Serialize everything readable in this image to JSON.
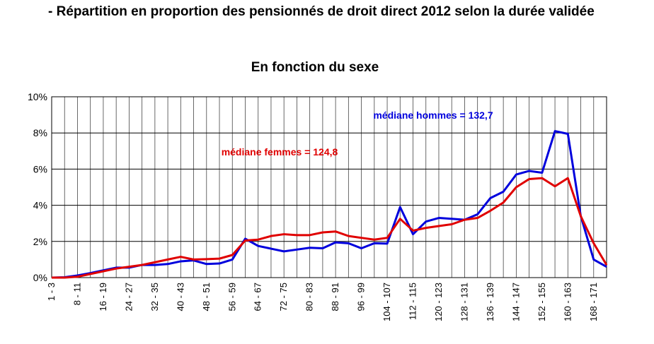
{
  "heading": "- Répartition en proportion des pensionnés de droit direct 2012 selon la durée validée",
  "chart_data": {
    "type": "line",
    "title": "En fonction du sexe",
    "categories": [
      "1 - 3",
      null,
      "8 - 11",
      null,
      "16 - 19",
      null,
      "24 - 27",
      null,
      "32 - 35",
      null,
      "40 - 43",
      null,
      "48 - 51",
      null,
      "56 - 59",
      null,
      "64 - 67",
      null,
      "72 - 75",
      null,
      "80 - 83",
      null,
      "88 - 91",
      null,
      "96 - 99",
      null,
      "104 - 107",
      null,
      "112 - 115",
      null,
      "120 - 123",
      null,
      "128 - 131",
      null,
      "136 - 139",
      null,
      "144 - 147",
      null,
      "152 - 155",
      null,
      "160 - 163",
      null,
      "168 - 171",
      null
    ],
    "series": [
      {
        "color": "#0000dd",
        "values": [
          0,
          0.02,
          0.12,
          0.25,
          0.4,
          0.55,
          0.55,
          0.7,
          0.7,
          0.75,
          0.9,
          0.95,
          0.75,
          0.78,
          1.0,
          2.15,
          1.75,
          1.6,
          1.45,
          1.55,
          1.65,
          1.62,
          1.95,
          1.9,
          1.62,
          1.9,
          1.88,
          3.9,
          2.4,
          3.1,
          3.3,
          3.25,
          3.2,
          3.5,
          4.4,
          4.75,
          5.7,
          5.9,
          5.8,
          8.1,
          7.95,
          3.4,
          1.0,
          0.6
        ]
      },
      {
        "color": "#e00000",
        "values": [
          0,
          0,
          0.05,
          0.2,
          0.35,
          0.5,
          0.6,
          0.7,
          0.85,
          1.0,
          1.15,
          1.0,
          1.02,
          1.05,
          1.25,
          2.05,
          2.1,
          2.3,
          2.4,
          2.35,
          2.35,
          2.5,
          2.55,
          2.3,
          2.2,
          2.1,
          2.2,
          3.25,
          2.6,
          2.75,
          2.85,
          2.95,
          3.2,
          3.3,
          3.7,
          4.15,
          5.0,
          5.45,
          5.5,
          5.05,
          5.5,
          3.4,
          1.9,
          0.7
        ]
      }
    ],
    "annotations": [
      {
        "text": "médiane hommes = 132,7",
        "color": "#0000dd"
      },
      {
        "text": "médiane femmes = 124,8",
        "color": "#e00000"
      }
    ],
    "ylim": [
      0,
      10
    ],
    "yticks": [
      {
        "value": 0,
        "label": "0%"
      },
      {
        "value": 2,
        "label": "2%"
      },
      {
        "value": 4,
        "label": "4%"
      },
      {
        "value": 6,
        "label": "6%"
      },
      {
        "value": 8,
        "label": "8%"
      },
      {
        "value": 10,
        "label": "10%"
      }
    ],
    "grid": true
  }
}
